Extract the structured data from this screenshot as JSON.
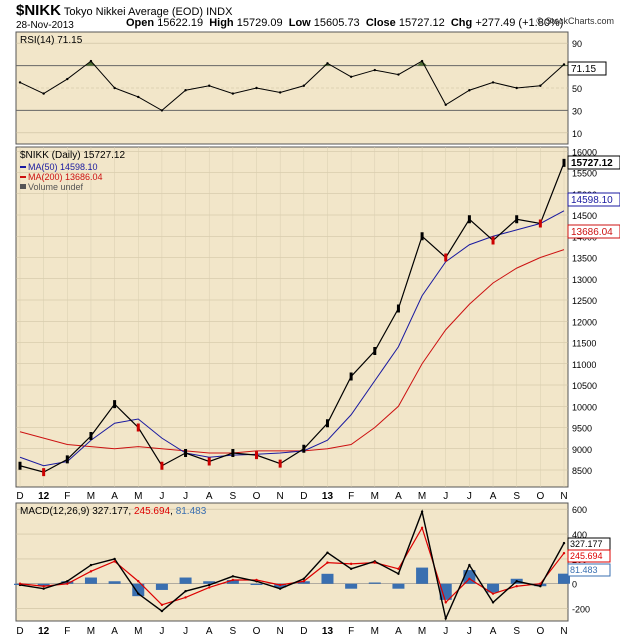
{
  "header": {
    "symbol": "$NIKK",
    "name": "Tokyo Nikkei Average (EOD)",
    "exchange": "INDX",
    "date": "28-Nov-2013",
    "open_label": "Open",
    "open": "15622.19",
    "high_label": "High",
    "high": "15729.09",
    "low_label": "Low",
    "low": "15605.73",
    "close_label": "Close",
    "close": "15727.12",
    "chg_label": "Chg",
    "chg": "+277.49 (+1.80%)",
    "copyright": "© StockCharts.com"
  },
  "rsi_panel": {
    "label": "RSI(14) 71.15",
    "current_value_label": "71.15",
    "axis_ticks": [
      "90",
      "70",
      "50",
      "30",
      "10"
    ]
  },
  "price_panel": {
    "label": "$NIKK (Daily) 15727.12",
    "legend": [
      {
        "text": "MA(50) 14598.10",
        "color": "#1a1aa0"
      },
      {
        "text": "MA(200) 13686.04",
        "color": "#cc1111"
      },
      {
        "text": "Volume undef",
        "color": "#555555"
      }
    ],
    "badges": {
      "close": "15727.12",
      "ma50": "14598.10",
      "ma200": "13686.04"
    },
    "axis_ticks": [
      "16000",
      "15500",
      "15000",
      "14500",
      "14000",
      "13500",
      "13000",
      "12500",
      "12000",
      "11500",
      "11000",
      "10500",
      "10000",
      "9500",
      "9000",
      "8500"
    ]
  },
  "macd_panel": {
    "label_prefix": "MACD(12,26,9)",
    "macd": "327.177",
    "signal": "245.694",
    "histogram": "81.483",
    "axis_ticks": [
      "600",
      "400",
      "200",
      "0",
      "-200"
    ]
  },
  "x_axis_labels": [
    "D",
    "12",
    "F",
    "M",
    "A",
    "M",
    "J",
    "J",
    "A",
    "S",
    "O",
    "N",
    "D",
    "13",
    "F",
    "M",
    "A",
    "M",
    "J",
    "J",
    "A",
    "S",
    "O",
    "N"
  ],
  "colors": {
    "panel_bg": "#f2e6c9",
    "price_line": "#000000",
    "down_candle": "#cc0000",
    "ma50": "#1a1aa0",
    "ma200": "#cc1111",
    "rsi_line": "#000000",
    "rsi_fill": "#4e6e33",
    "macd_line": "#000000",
    "signal_line": "#dd0000",
    "histogram": "#3a6fb0"
  },
  "chart_data": [
    {
      "type": "line",
      "title": "RSI(14) 71.15",
      "ylim": [
        0,
        100
      ],
      "grid": true,
      "x": [
        "Dec-12",
        "Jan",
        "Feb",
        "Mar",
        "Apr",
        "May",
        "Jun",
        "Jul",
        "Aug",
        "Sep",
        "Oct",
        "Nov",
        "Dec",
        "Jan-13",
        "Feb",
        "Mar",
        "Apr",
        "May",
        "Jun",
        "Jul",
        "Aug",
        "Sep",
        "Oct",
        "Nov"
      ],
      "series": [
        {
          "name": "RSI(14)",
          "values": [
            55,
            45,
            58,
            74,
            50,
            42,
            30,
            48,
            52,
            45,
            50,
            46,
            52,
            72,
            60,
            66,
            62,
            74,
            35,
            48,
            55,
            50,
            52,
            71
          ]
        }
      ]
    },
    {
      "type": "line",
      "title": "$NIKK (Daily) 15727.12",
      "ylim": [
        8100,
        16100
      ],
      "grid": true,
      "x": [
        "Dec-12",
        "Jan",
        "Feb",
        "Mar",
        "Apr",
        "May",
        "Jun",
        "Jul",
        "Aug",
        "Sep",
        "Oct",
        "Nov",
        "Dec",
        "Jan-13",
        "Feb",
        "Mar",
        "Apr",
        "May",
        "Jun",
        "Jul",
        "Aug",
        "Sep",
        "Oct",
        "Nov"
      ],
      "series": [
        {
          "name": "$NIKK",
          "values": [
            8600,
            8450,
            8750,
            9300,
            10050,
            9500,
            8600,
            8900,
            8700,
            8900,
            8850,
            8650,
            9000,
            9600,
            10700,
            11300,
            12300,
            14000,
            13500,
            14400,
            13900,
            14400,
            14300,
            15727
          ]
        },
        {
          "name": "MA(50)",
          "values": [
            8800,
            8600,
            8700,
            9200,
            9600,
            9700,
            9250,
            8900,
            8800,
            8850,
            8870,
            8900,
            8950,
            9200,
            9800,
            10600,
            11400,
            12600,
            13400,
            13800,
            14000,
            14150,
            14300,
            14598
          ]
        },
        {
          "name": "MA(200)",
          "values": [
            9400,
            9250,
            9100,
            9050,
            9000,
            9050,
            9000,
            8950,
            8900,
            8900,
            8950,
            8950,
            8950,
            9000,
            9100,
            9500,
            10000,
            11000,
            11800,
            12400,
            12900,
            13250,
            13500,
            13686
          ]
        }
      ]
    },
    {
      "type": "line",
      "title": "MACD(12,26,9) 327.177, 245.694, 81.483",
      "ylim": [
        -300,
        650
      ],
      "grid": true,
      "x": [
        "Dec-12",
        "Jan",
        "Feb",
        "Mar",
        "Apr",
        "May",
        "Jun",
        "Jul",
        "Aug",
        "Sep",
        "Oct",
        "Nov",
        "Dec",
        "Jan-13",
        "Feb",
        "Mar",
        "Apr",
        "May",
        "Jun",
        "Jul",
        "Aug",
        "Sep",
        "Oct",
        "Nov"
      ],
      "series": [
        {
          "name": "MACD",
          "values": [
            -10,
            -40,
            20,
            150,
            200,
            -80,
            -220,
            -60,
            -10,
            60,
            20,
            -40,
            40,
            250,
            120,
            180,
            80,
            580,
            -280,
            150,
            -150,
            20,
            -20,
            327
          ]
        },
        {
          "name": "Signal",
          "values": [
            0,
            -20,
            0,
            100,
            180,
            20,
            -170,
            -110,
            -30,
            30,
            30,
            -10,
            20,
            170,
            160,
            170,
            120,
            450,
            -150,
            40,
            -80,
            -20,
            0,
            246
          ]
        },
        {
          "name": "Histogram",
          "values": [
            -10,
            -20,
            20,
            50,
            20,
            -100,
            -50,
            50,
            20,
            30,
            -10,
            -30,
            20,
            80,
            -40,
            10,
            -40,
            130,
            -130,
            110,
            -70,
            40,
            -20,
            81
          ]
        }
      ]
    }
  ]
}
